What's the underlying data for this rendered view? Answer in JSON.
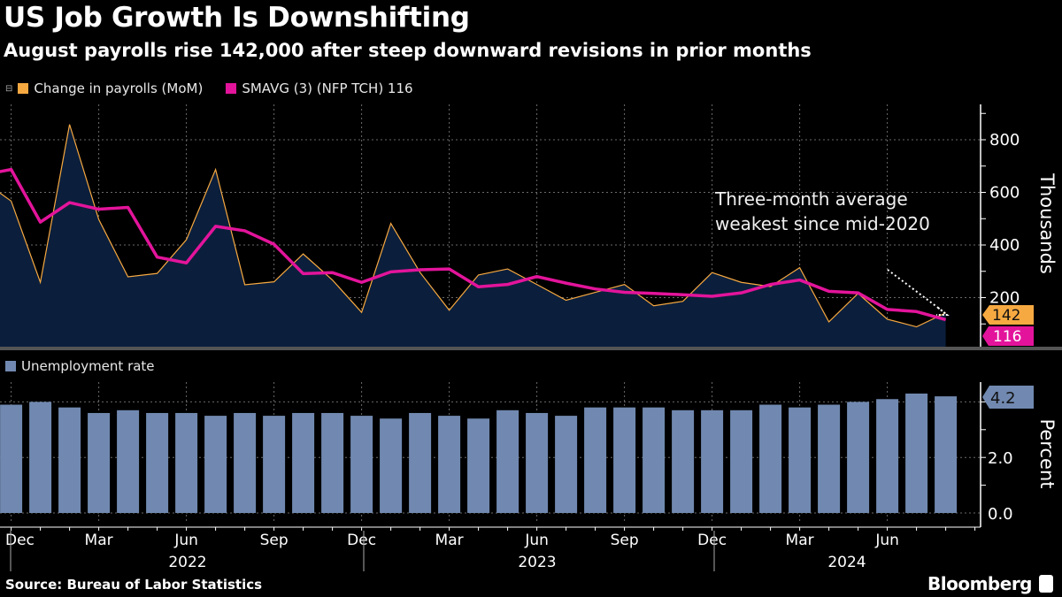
{
  "header": {
    "title": "US Job Growth Is Downshifting",
    "subtitle": "August payrolls rise 142,000 after steep downward revisions in prior months"
  },
  "legend_top": {
    "series1": "Change in payrolls (MoM)",
    "series2": "SMAVG (3) (NFP TCH) 116"
  },
  "legend_bottom": {
    "series1": "Unemployment rate"
  },
  "annotation": {
    "line1": "Three-month average",
    "line2": "weakest since mid-2020"
  },
  "footer": {
    "source": "Source: Bureau of Labor Statistics",
    "brand": "Bloomberg"
  },
  "colors": {
    "payrolls": "#f7a941",
    "smavg": "#e3149b",
    "area": "#0b1f3c",
    "bars": "#7189b0",
    "grid": "#6a6a6a"
  },
  "chart_data": [
    {
      "type": "area+line",
      "months": [
        "Nov 2021",
        "Dec 2021",
        "Jan 2022",
        "Feb 2022",
        "Mar 2022",
        "Apr 2022",
        "May 2022",
        "Jun 2022",
        "Jul 2022",
        "Aug 2022",
        "Sep 2022",
        "Oct 2022",
        "Nov 2022",
        "Dec 2022",
        "Jan 2023",
        "Feb 2023",
        "Mar 2023",
        "Apr 2023",
        "May 2023",
        "Jun 2023",
        "Jul 2023",
        "Aug 2023",
        "Sep 2023",
        "Oct 2023",
        "Nov 2023",
        "Dec 2023",
        "Jan 2024",
        "Feb 2024",
        "Mar 2024",
        "Apr 2024",
        "May 2024",
        "Jun 2024",
        "Jul 2024",
        "Aug 2024"
      ],
      "series": [
        {
          "name": "Change in payrolls (MoM)",
          "values": [
            647,
            567,
            258,
            858,
            497,
            279,
            292,
            420,
            687,
            249,
            260,
            366,
            267,
            144,
            482,
            296,
            152,
            286,
            309,
            250,
            190,
            220,
            250,
            169,
            186,
            295,
            258,
            242,
            314,
            108,
            216,
            118,
            89,
            142
          ]
        },
        {
          "name": "SMAVG (3) (NFP TCH)",
          "values": [
            666,
            687,
            487,
            561,
            536,
            543,
            354,
            332,
            471,
            454,
            403,
            291,
            295,
            258,
            298,
            306,
            309,
            241,
            250,
            280,
            255,
            233,
            220,
            216,
            211,
            205,
            218,
            250,
            267,
            224,
            218,
            155,
            147,
            116
          ]
        }
      ],
      "ylabel": "Thousands",
      "yticks": [
        "200",
        "400",
        "600",
        "800"
      ],
      "ylim": [
        0,
        920
      ],
      "last_value_labels": {
        "payrolls": "142",
        "smavg": "116"
      },
      "grid": true
    },
    {
      "type": "bar",
      "months": [
        "Dec 2021",
        "Jan 2022",
        "Feb 2022",
        "Mar 2022",
        "Apr 2022",
        "May 2022",
        "Jun 2022",
        "Jul 2022",
        "Aug 2022",
        "Sep 2022",
        "Oct 2022",
        "Nov 2022",
        "Dec 2022",
        "Jan 2023",
        "Feb 2023",
        "Mar 2023",
        "Apr 2023",
        "May 2023",
        "Jun 2023",
        "Jul 2023",
        "Aug 2023",
        "Sep 2023",
        "Oct 2023",
        "Nov 2023",
        "Dec 2023",
        "Jan 2024",
        "Feb 2024",
        "Mar 2024",
        "Apr 2024",
        "May 2024",
        "Jun 2024",
        "Jul 2024",
        "Aug 2024"
      ],
      "series": [
        {
          "name": "Unemployment rate",
          "values": [
            3.9,
            4.0,
            3.8,
            3.6,
            3.7,
            3.6,
            3.6,
            3.5,
            3.6,
            3.5,
            3.6,
            3.6,
            3.5,
            3.4,
            3.6,
            3.5,
            3.4,
            3.7,
            3.6,
            3.5,
            3.8,
            3.8,
            3.8,
            3.7,
            3.7,
            3.7,
            3.9,
            3.8,
            3.9,
            4.0,
            4.1,
            4.3,
            4.2
          ]
        }
      ],
      "ylabel": "Percent",
      "yticks": [
        "0.0",
        "2.0"
      ],
      "ylim": [
        0,
        5.0
      ],
      "last_value_label": "4.2",
      "grid": true
    }
  ],
  "xaxis": {
    "month_labels": [
      "Dec",
      "Mar",
      "Jun",
      "Sep",
      "Dec",
      "Mar",
      "Jun",
      "Sep",
      "Dec",
      "Mar",
      "Jun"
    ],
    "year_labels": [
      "2022",
      "2023",
      "2024"
    ]
  }
}
